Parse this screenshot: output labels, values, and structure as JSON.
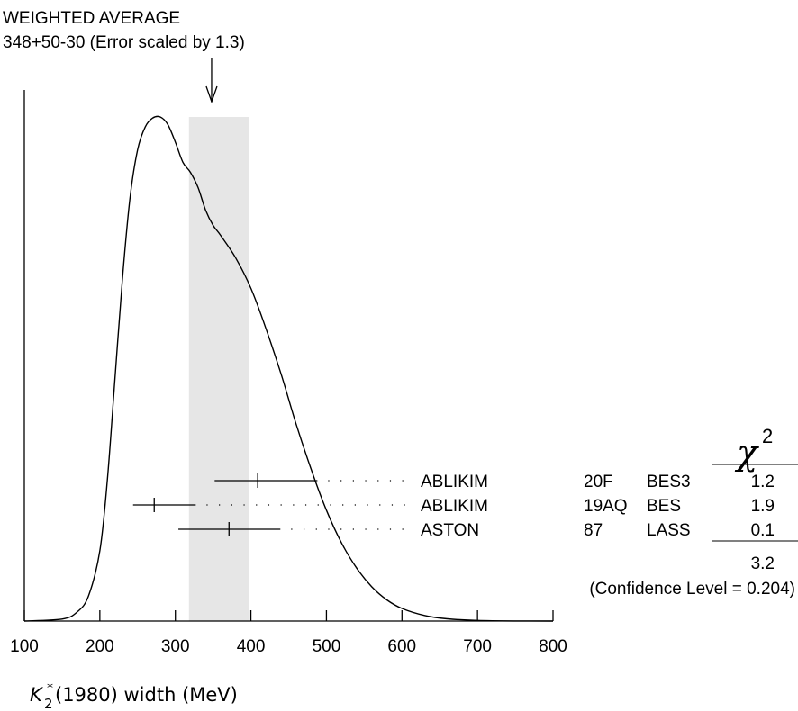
{
  "chart_data": {
    "type": "ideogram",
    "title": "WEIGHTED AVERAGE",
    "subtitle": "348+50-30 (Error scaled by 1.3)",
    "xlabel": {
      "main": "K",
      "sub": "2",
      "sup": "*",
      "rest": "(1980) width (MeV)"
    },
    "xlim": [
      100,
      800
    ],
    "xticks": [
      100,
      200,
      300,
      400,
      500,
      600,
      700,
      800
    ],
    "xtick_labels": [
      "100",
      "200",
      "300",
      "400",
      "500",
      "600",
      "700",
      "800"
    ],
    "weighted_average": {
      "value": 348,
      "err_plus": 50,
      "err_minus": 30
    },
    "average_band": [
      318,
      398
    ],
    "chi2_header": "χ",
    "chi2_exp": "2",
    "measurements": [
      {
        "author": "ABLIKIM",
        "ref": "20F",
        "experiment": "BES3",
        "value": 409,
        "err_low": 352,
        "err_high": 488,
        "chi2": "1.2"
      },
      {
        "author": "ABLIKIM",
        "ref": "19AQ",
        "experiment": "BES",
        "value": 272,
        "err_low": 244,
        "err_high": 327,
        "chi2": "1.9"
      },
      {
        "author": "ASTON",
        "ref": "87",
        "experiment": "LASS",
        "value": 371,
        "err_low": 304,
        "err_high": 439,
        "chi2": "0.1"
      }
    ],
    "chi2_total": "3.2",
    "confidence_level": "(Confidence Level = 0.204)",
    "ideogram_curve": [
      [
        100,
        0.0
      ],
      [
        150,
        0.4
      ],
      [
        170,
        1.8
      ],
      [
        185,
        5.0
      ],
      [
        200,
        14.0
      ],
      [
        210,
        28.0
      ],
      [
        220,
        48.0
      ],
      [
        230,
        68.0
      ],
      [
        240,
        84.0
      ],
      [
        250,
        93.5
      ],
      [
        260,
        98.0
      ],
      [
        270,
        99.8
      ],
      [
        280,
        100.0
      ],
      [
        290,
        98.5
      ],
      [
        300,
        95.0
      ],
      [
        310,
        91.0
      ],
      [
        320,
        89.0
      ],
      [
        330,
        86.0
      ],
      [
        340,
        81.5
      ],
      [
        350,
        78.5
      ],
      [
        360,
        76.5
      ],
      [
        380,
        72.0
      ],
      [
        400,
        66.0
      ],
      [
        420,
        58.0
      ],
      [
        440,
        49.0
      ],
      [
        460,
        39.0
      ],
      [
        480,
        30.0
      ],
      [
        500,
        22.0
      ],
      [
        520,
        15.5
      ],
      [
        540,
        10.5
      ],
      [
        560,
        6.8
      ],
      [
        580,
        4.2
      ],
      [
        600,
        2.5
      ],
      [
        630,
        1.1
      ],
      [
        660,
        0.45
      ],
      [
        700,
        0.12
      ],
      [
        750,
        0.02
      ],
      [
        800,
        0.0
      ]
    ]
  }
}
